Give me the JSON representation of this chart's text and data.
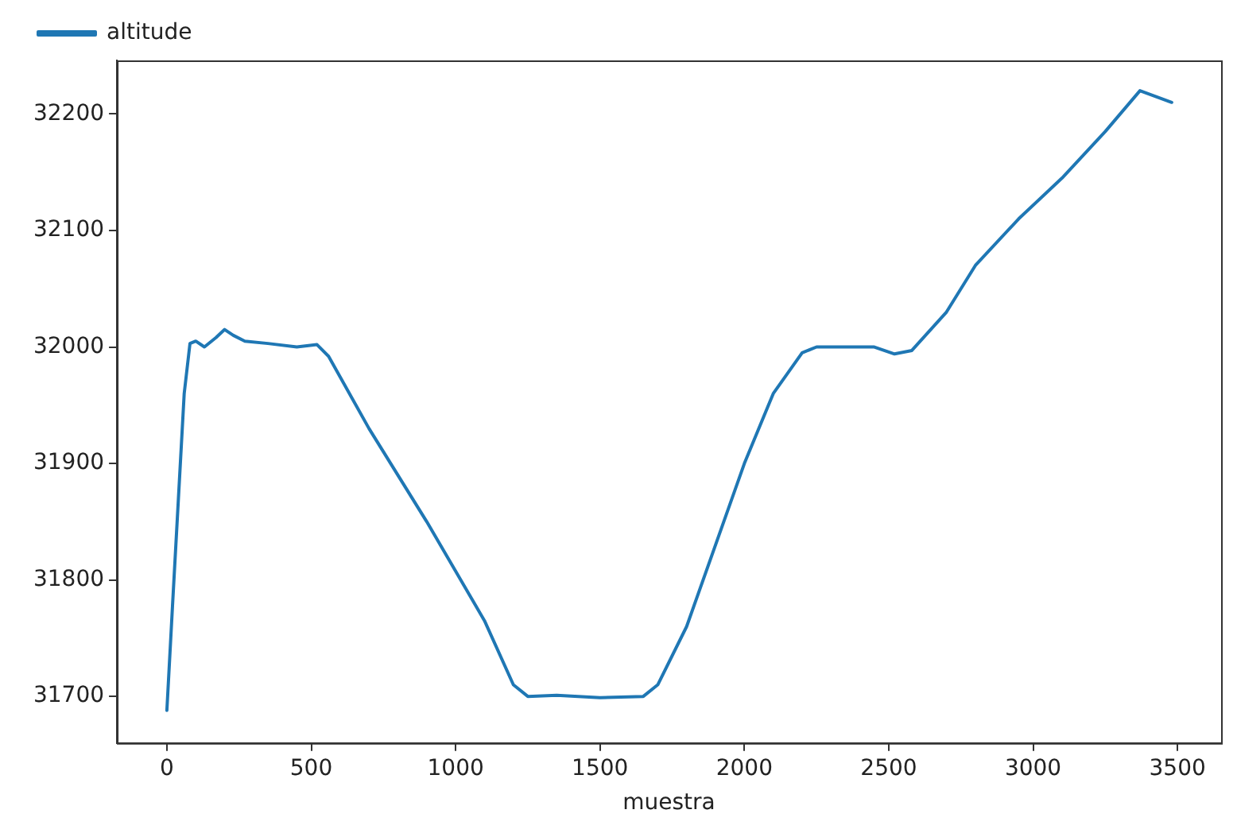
{
  "chart_data": {
    "type": "line",
    "xlabel": "muestra",
    "legend": "top left",
    "marker": "none",
    "line_style": "solid",
    "xlim": [
      -173,
      3651
    ],
    "ylim": [
      31660,
      32246
    ],
    "xticks": [
      0,
      500,
      1000,
      1500,
      2000,
      2500,
      3000,
      3500
    ],
    "yticks": [
      31700,
      31800,
      31900,
      32000,
      32100,
      32200
    ],
    "x": [
      0,
      20,
      40,
      60,
      80,
      100,
      130,
      170,
      200,
      230,
      270,
      350,
      450,
      520,
      560,
      700,
      900,
      1100,
      1200,
      1250,
      1350,
      1500,
      1650,
      1700,
      1800,
      2000,
      2100,
      2200,
      2250,
      2450,
      2520,
      2580,
      2700,
      2800,
      2950,
      3100,
      3250,
      3370,
      3480
    ],
    "series": [
      {
        "name": "altitude",
        "color": "#1f77b4",
        "values": [
          31688,
          31780,
          31870,
          31960,
          32003,
          32005,
          32000,
          32008,
          32015,
          32010,
          32005,
          32003,
          32000,
          32002,
          31992,
          31930,
          31850,
          31765,
          31710,
          31700,
          31701,
          31699,
          31700,
          31710,
          31760,
          31900,
          31960,
          31995,
          32000,
          32000,
          31994,
          31997,
          32030,
          32070,
          32110,
          32145,
          32185,
          32220,
          32210
        ]
      }
    ]
  }
}
